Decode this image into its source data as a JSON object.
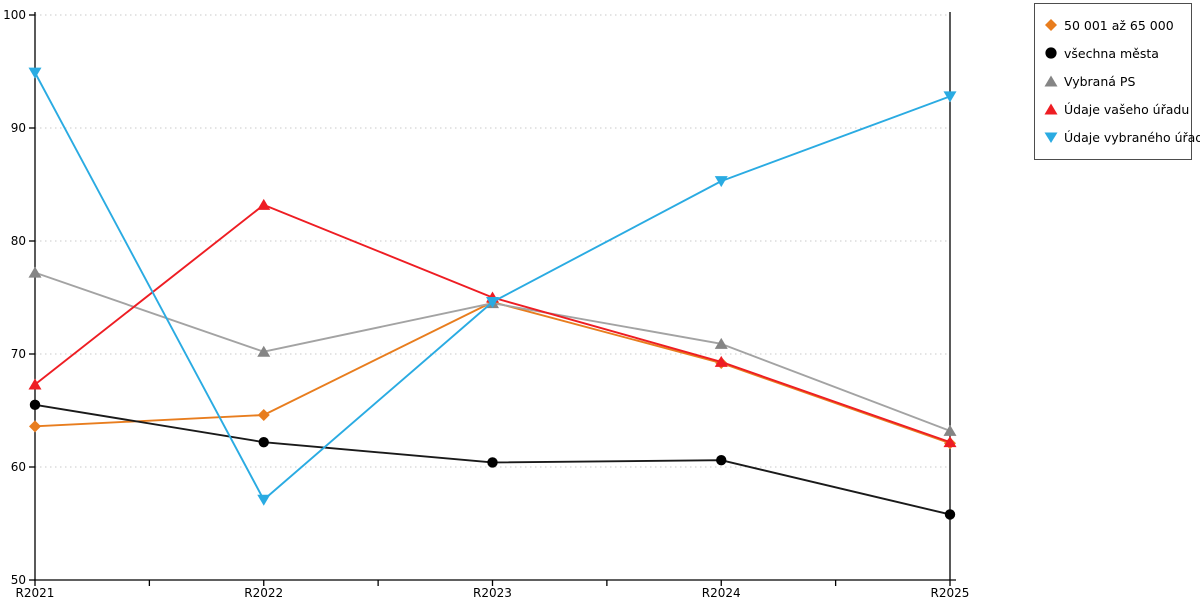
{
  "chart_data": {
    "type": "line",
    "title": "",
    "xlabel": "",
    "ylabel": "",
    "categories": [
      "R2021",
      "R2022",
      "R2023",
      "R2024",
      "R2025"
    ],
    "series": [
      {
        "name": "50 001 až 65 000",
        "marker": "diamond",
        "color": "#e87d1e",
        "marker_color": "#e87d1e",
        "values": [
          63.6,
          64.6,
          74.6,
          69.2,
          62.1
        ]
      },
      {
        "name": "všechna města",
        "marker": "circle",
        "color": "#1a1a1a",
        "marker_color": "#000000",
        "values": [
          65.5,
          62.2,
          60.4,
          60.6,
          55.8
        ]
      },
      {
        "name": "Vybraná PS",
        "marker": "triangle-up",
        "color": "#a3a3a3",
        "marker_color": "#858585",
        "values": [
          77.2,
          70.2,
          74.5,
          70.9,
          63.2
        ]
      },
      {
        "name": "Údaje vašeho úřadu",
        "marker": "triangle-up",
        "color": "#ee1d23",
        "marker_color": "#ee1d23",
        "values": [
          67.3,
          83.2,
          75.0,
          69.3,
          62.2
        ]
      },
      {
        "name": "Údaje vybraného úřadu",
        "marker": "triangle-down",
        "color": "#2aabe2",
        "marker_color": "#2aabe2",
        "values": [
          94.9,
          57.1,
          74.6,
          85.3,
          92.8
        ]
      }
    ],
    "ylim": [
      50,
      100
    ],
    "yticks": [
      50,
      60,
      70,
      80,
      90,
      100
    ],
    "grid": "horizontal-dotted",
    "minor_x_ticks_between_categories": true,
    "legend_position": "top-right-outside"
  },
  "colors": {
    "background": "#ffffff",
    "axis": "#000000",
    "gridline": "#c9c9c9",
    "legend_border": "#4d4d4d",
    "text": "#000000"
  }
}
